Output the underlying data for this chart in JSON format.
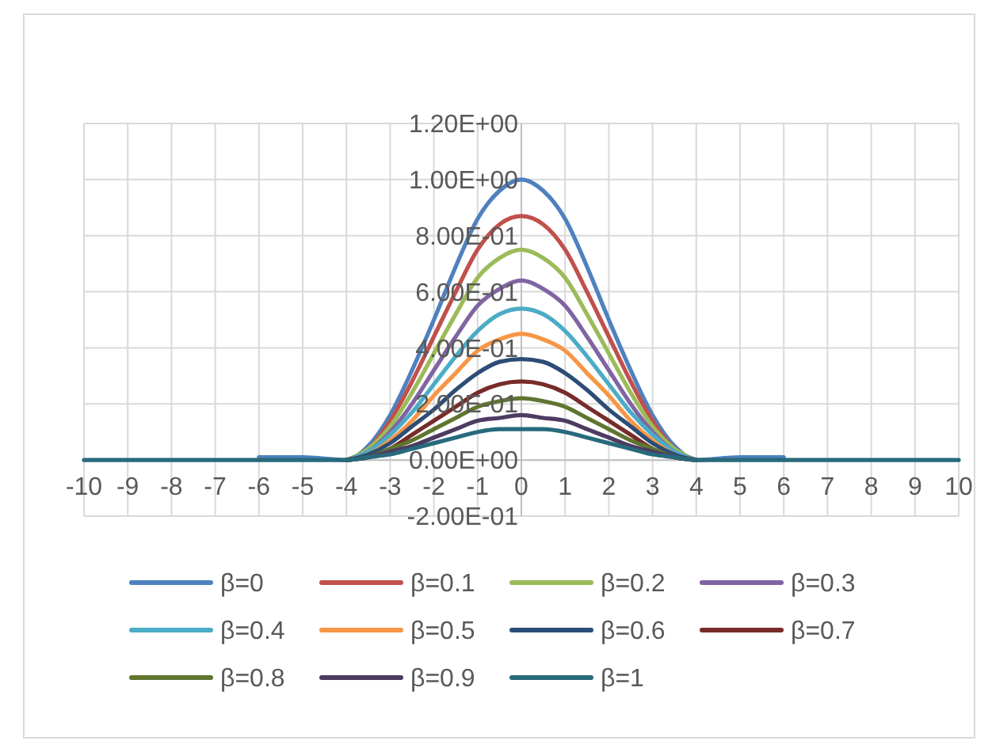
{
  "chart_data": {
    "type": "line",
    "x": [
      -10,
      -9,
      -8,
      -7,
      -6,
      -5,
      -4,
      -3.5,
      -3,
      -2.5,
      -2,
      -1.5,
      -1,
      -0.5,
      0,
      0.5,
      1,
      1.5,
      2,
      2.5,
      3,
      3.5,
      4,
      5,
      6,
      7,
      8,
      9,
      10
    ],
    "series": [
      {
        "name": "β=0",
        "color": "#4f81bd",
        "values": [
          null,
          null,
          null,
          null,
          0.01,
          0.01,
          0,
          0.05,
          0.16,
          0.32,
          0.5,
          0.69,
          0.86,
          0.96,
          1,
          0.96,
          0.86,
          0.69,
          0.5,
          0.32,
          0.16,
          0.05,
          0,
          0.01,
          0.01,
          null,
          null,
          null,
          null
        ]
      },
      {
        "name": "β=0.1",
        "color": "#c0504d",
        "values": [
          null,
          null,
          null,
          null,
          null,
          null,
          0,
          0.04,
          0.14,
          0.28,
          0.44,
          0.6,
          0.75,
          0.84,
          0.87,
          0.84,
          0.75,
          0.6,
          0.44,
          0.28,
          0.14,
          0.04,
          0,
          null,
          null,
          null,
          null,
          null,
          null
        ]
      },
      {
        "name": "β=0.2",
        "color": "#9bbb59",
        "values": [
          null,
          null,
          null,
          null,
          null,
          null,
          0,
          0.04,
          0.12,
          0.24,
          0.38,
          0.52,
          0.65,
          0.72,
          0.75,
          0.72,
          0.65,
          0.52,
          0.38,
          0.24,
          0.12,
          0.04,
          0,
          null,
          null,
          null,
          null,
          null,
          null
        ]
      },
      {
        "name": "β=0.3",
        "color": "#8064a2",
        "values": [
          null,
          null,
          null,
          null,
          null,
          null,
          0,
          0.03,
          0.1,
          0.2,
          0.32,
          0.44,
          0.55,
          0.61,
          0.64,
          0.61,
          0.55,
          0.44,
          0.32,
          0.2,
          0.1,
          0.03,
          0,
          null,
          null,
          null,
          null,
          null,
          null
        ]
      },
      {
        "name": "β=0.4",
        "color": "#4bacc6",
        "values": [
          null,
          null,
          null,
          null,
          null,
          null,
          0,
          0.03,
          0.09,
          0.17,
          0.27,
          0.37,
          0.46,
          0.52,
          0.54,
          0.52,
          0.46,
          0.37,
          0.27,
          0.17,
          0.09,
          0.03,
          0,
          null,
          null,
          null,
          null,
          null,
          null
        ]
      },
      {
        "name": "β=0.5",
        "color": "#f79646",
        "values": [
          null,
          null,
          null,
          null,
          null,
          null,
          0,
          0.02,
          0.07,
          0.14,
          0.23,
          0.31,
          0.39,
          0.43,
          0.45,
          0.43,
          0.39,
          0.31,
          0.23,
          0.14,
          0.07,
          0.02,
          0,
          null,
          null,
          null,
          null,
          null,
          null
        ]
      },
      {
        "name": "β=0.6",
        "color": "#2c4d75",
        "values": [
          null,
          null,
          null,
          null,
          null,
          null,
          0,
          0.02,
          0.06,
          0.12,
          0.18,
          0.25,
          0.31,
          0.35,
          0.36,
          0.35,
          0.31,
          0.25,
          0.18,
          0.12,
          0.06,
          0.02,
          0,
          null,
          null,
          null,
          null,
          null,
          null
        ]
      },
      {
        "name": "β=0.7",
        "color": "#772c2a",
        "values": [
          null,
          null,
          null,
          null,
          null,
          null,
          0,
          0.01,
          0.04,
          0.09,
          0.14,
          0.19,
          0.24,
          0.27,
          0.28,
          0.27,
          0.24,
          0.19,
          0.14,
          0.09,
          0.04,
          0.01,
          0,
          null,
          null,
          null,
          null,
          null,
          null
        ]
      },
      {
        "name": "β=0.8",
        "color": "#5f7530",
        "values": [
          null,
          null,
          null,
          null,
          null,
          null,
          0,
          0.01,
          0.04,
          0.07,
          0.11,
          0.15,
          0.19,
          0.21,
          0.22,
          0.21,
          0.19,
          0.15,
          0.11,
          0.07,
          0.04,
          0.01,
          0,
          null,
          null,
          null,
          null,
          null,
          null
        ]
      },
      {
        "name": "β=0.9",
        "color": "#4d3b62",
        "values": [
          null,
          null,
          null,
          null,
          null,
          null,
          0,
          0.01,
          0.03,
          0.05,
          0.08,
          0.11,
          0.14,
          0.15,
          0.16,
          0.15,
          0.14,
          0.11,
          0.08,
          0.05,
          0.03,
          0.01,
          0,
          null,
          null,
          null,
          null,
          null,
          null
        ]
      },
      {
        "name": "β=1",
        "color": "#276a7c",
        "values": [
          0,
          0,
          0,
          0,
          0,
          0,
          0,
          0.01,
          0.02,
          0.04,
          0.06,
          0.08,
          0.1,
          0.11,
          0.11,
          0.11,
          0.1,
          0.08,
          0.06,
          0.04,
          0.02,
          0.01,
          0,
          0,
          0,
          0,
          0,
          0,
          0
        ]
      }
    ],
    "xlim": [
      -10,
      10
    ],
    "xticks": [
      -10,
      -9,
      -8,
      -7,
      -6,
      -5,
      -4,
      -3,
      -2,
      -1,
      0,
      1,
      2,
      3,
      4,
      5,
      6,
      7,
      8,
      9,
      10
    ],
    "ylim": [
      -0.2,
      1.2
    ],
    "yticks": [
      {
        "value": -0.2,
        "label": "-2.00E-01"
      },
      {
        "value": 0,
        "label": "0.00E+00"
      },
      {
        "value": 0.2,
        "label": "2.00E-01"
      },
      {
        "value": 0.4,
        "label": "4.00E-01"
      },
      {
        "value": 0.6,
        "label": "6.00E-01"
      },
      {
        "value": 0.8,
        "label": "8.00E-01"
      },
      {
        "value": 1,
        "label": "1.00E+00"
      },
      {
        "value": 1.2,
        "label": "1.20E+00"
      }
    ],
    "grid": true,
    "legend": "bottom",
    "marker": "none",
    "line_style": "solid"
  }
}
